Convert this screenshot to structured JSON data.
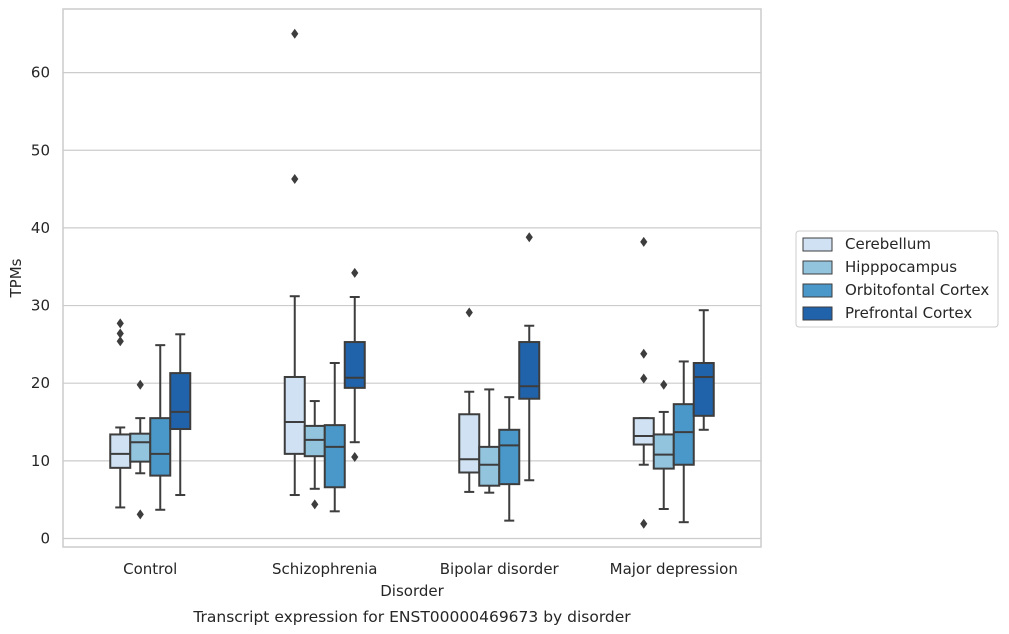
{
  "chart_data": {
    "type": "box",
    "title": "",
    "caption": "Transcript expression for ENST00000469673 by disorder",
    "xlabel": "Disorder",
    "ylabel": "TPMs",
    "ylim": [
      -1.2,
      67.5
    ],
    "yticks": [
      0,
      10,
      20,
      30,
      40,
      50,
      60
    ],
    "grid": "horizontal",
    "legend_position": "right",
    "categories": [
      "Control",
      "Schizophrenia",
      "Bipolar disorder",
      "Major depression"
    ],
    "series": [
      {
        "name": "Cerebellum",
        "color": "#cfe1f2",
        "boxes": [
          {
            "whislo": 4.0,
            "q1": 9.1,
            "med": 10.9,
            "q3": 13.4,
            "whishi": 14.3,
            "fliers": [
              25.4,
              26.4,
              27.7
            ]
          },
          {
            "whislo": 5.6,
            "q1": 10.9,
            "med": 15.0,
            "q3": 20.8,
            "whishi": 31.2,
            "fliers": [
              46.3,
              65.0
            ]
          },
          {
            "whislo": 6.0,
            "q1": 8.5,
            "med": 10.2,
            "q3": 16.0,
            "whishi": 18.9,
            "fliers": [
              29.1
            ]
          },
          {
            "whislo": 9.5,
            "q1": 12.1,
            "med": 13.2,
            "q3": 15.5,
            "whishi": 15.5,
            "fliers": [
              1.9,
              20.6,
              23.8,
              38.2
            ]
          }
        ]
      },
      {
        "name": "Hipppocampus",
        "color": "#93c4de",
        "boxes": [
          {
            "whislo": 8.4,
            "q1": 9.9,
            "med": 12.4,
            "q3": 13.5,
            "whishi": 15.5,
            "fliers": [
              3.1,
              19.8
            ]
          },
          {
            "whislo": 6.4,
            "q1": 10.6,
            "med": 12.7,
            "q3": 14.5,
            "whishi": 17.7,
            "fliers": [
              4.4
            ]
          },
          {
            "whislo": 5.9,
            "q1": 6.8,
            "med": 9.5,
            "q3": 11.8,
            "whishi": 19.2,
            "fliers": []
          },
          {
            "whislo": 3.8,
            "q1": 9.0,
            "med": 10.8,
            "q3": 13.4,
            "whishi": 16.3,
            "fliers": [
              19.8
            ]
          }
        ]
      },
      {
        "name": "Orbitofontal Cortex",
        "color": "#4a98c9",
        "boxes": [
          {
            "whislo": 3.7,
            "q1": 8.1,
            "med": 10.9,
            "q3": 15.5,
            "whishi": 24.9,
            "fliers": []
          },
          {
            "whislo": 3.5,
            "q1": 6.6,
            "med": 11.8,
            "q3": 14.6,
            "whishi": 22.6,
            "fliers": []
          },
          {
            "whislo": 2.3,
            "q1": 7.0,
            "med": 12.0,
            "q3": 14.0,
            "whishi": 18.2,
            "fliers": []
          },
          {
            "whislo": 2.1,
            "q1": 9.5,
            "med": 13.7,
            "q3": 17.3,
            "whishi": 22.8,
            "fliers": []
          }
        ]
      },
      {
        "name": "Prefrontal Cortex",
        "color": "#2163aa",
        "boxes": [
          {
            "whislo": 5.6,
            "q1": 14.1,
            "med": 16.3,
            "q3": 21.3,
            "whishi": 26.3,
            "fliers": []
          },
          {
            "whislo": 12.4,
            "q1": 19.4,
            "med": 20.7,
            "q3": 25.3,
            "whishi": 31.1,
            "fliers": [
              10.5,
              34.2
            ]
          },
          {
            "whislo": 7.5,
            "q1": 18.0,
            "med": 19.6,
            "q3": 25.3,
            "whishi": 27.4,
            "fliers": [
              38.8
            ]
          },
          {
            "whislo": 14.0,
            "q1": 15.8,
            "med": 20.8,
            "q3": 22.6,
            "whishi": 29.4,
            "fliers": []
          }
        ]
      }
    ]
  }
}
